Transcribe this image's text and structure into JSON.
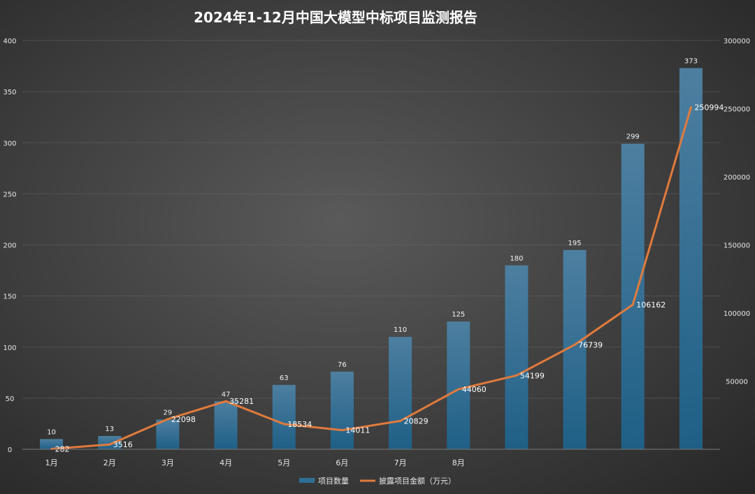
{
  "chart_data": {
    "type": "bar",
    "title": "2024年1-12月中国大模型中标项目监测报告",
    "categories": [
      "1月",
      "2月",
      "3月",
      "4月",
      "5月",
      "6月",
      "7月",
      "8月",
      "",
      "",
      "",
      ""
    ],
    "series": [
      {
        "name": "项目数量",
        "type": "bar",
        "axis": "left",
        "values": [
          10,
          13,
          29,
          47,
          63,
          76,
          110,
          125,
          180,
          195,
          299,
          373
        ]
      },
      {
        "name": "披露项目金额（万元）",
        "type": "line",
        "axis": "right",
        "values": [
          282,
          3516,
          22098,
          35281,
          18534,
          14011,
          20829,
          44060,
          54199,
          76739,
          106162,
          250994
        ]
      }
    ],
    "y_left": {
      "min": 0,
      "max": 400,
      "ticks": [
        0,
        50,
        100,
        150,
        200,
        250,
        300,
        350,
        400
      ]
    },
    "y_right": {
      "min": 0,
      "max": 300000,
      "ticks": [
        50000,
        100000,
        150000,
        200000,
        250000,
        300000
      ]
    },
    "grid": true,
    "legend_position": "bottom-center",
    "colors": {
      "bar": "#2f6f96",
      "bar_top": "#4d7fa0",
      "line": "#e07b3c"
    }
  }
}
